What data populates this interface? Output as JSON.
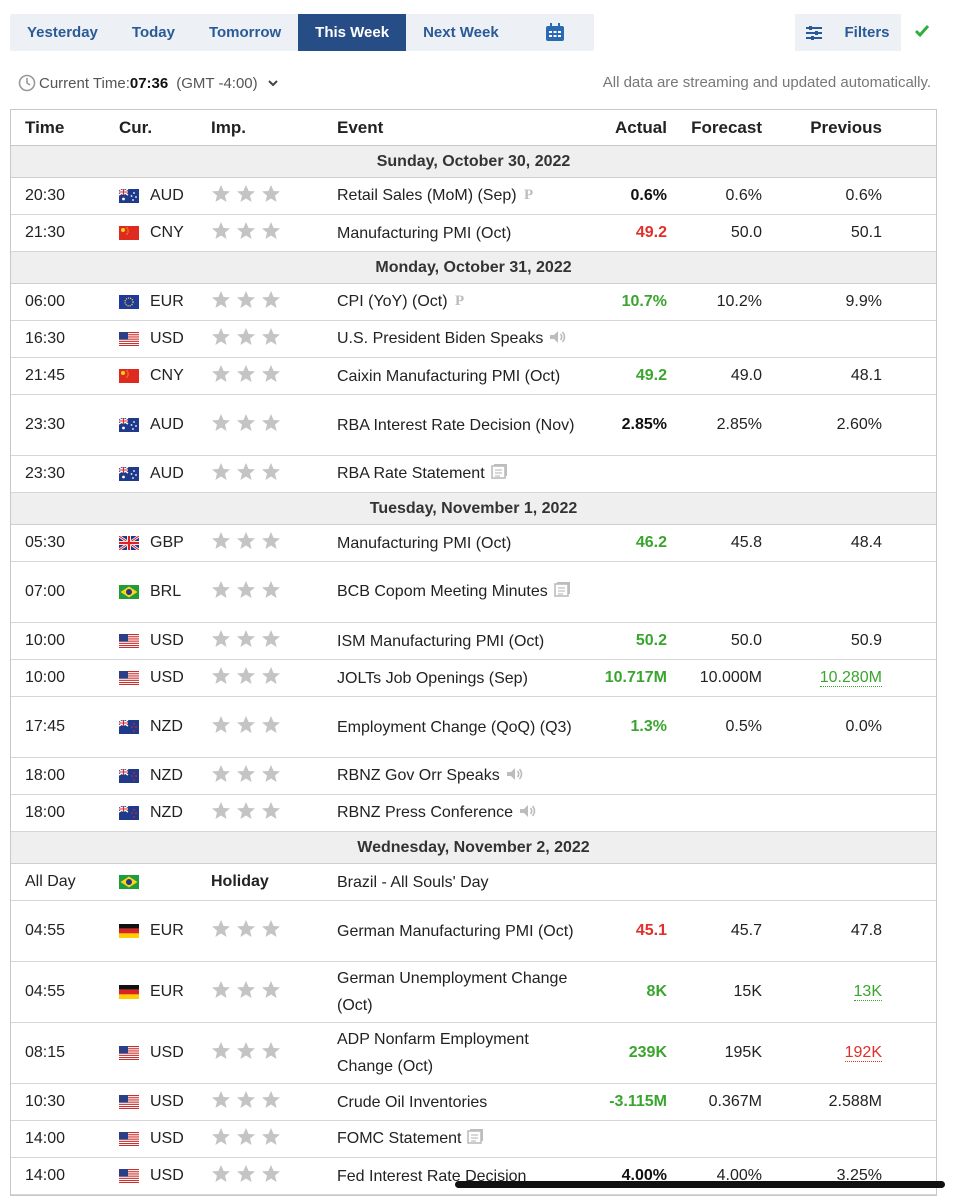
{
  "tabs": [
    {
      "label": "Yesterday",
      "active": false
    },
    {
      "label": "Today",
      "active": false
    },
    {
      "label": "Tomorrow",
      "active": false
    },
    {
      "label": "This Week",
      "active": true
    },
    {
      "label": "Next Week",
      "active": false
    }
  ],
  "filters_label": "Filters",
  "time": {
    "prefix": "Current Time:",
    "value": "07:36",
    "zone": "(GMT -4:00)"
  },
  "stream_note": "All data are streaming and updated automatically.",
  "headers": {
    "time": "Time",
    "cur": "Cur.",
    "imp": "Imp.",
    "event": "Event",
    "actual": "Actual",
    "forecast": "Forecast",
    "previous": "Previous"
  },
  "colors": {
    "accent": "#274d86",
    "tab_text": "#2a5a95",
    "positive": "#3aa52e",
    "negative": "#e0302b",
    "check": "#2fae3a"
  },
  "days": [
    {
      "label": "Sunday, October 30, 2022",
      "rows": [
        {
          "time": "20:30",
          "cur": "AUD",
          "flag": "au",
          "event": "Retail Sales (MoM) (Sep)",
          "icon": "preliminary-icon",
          "actual": "0.6%",
          "actual_color": "black",
          "forecast": "0.6%",
          "previous": "0.6%",
          "prev_style": ""
        },
        {
          "time": "21:30",
          "cur": "CNY",
          "flag": "cn",
          "event": "Manufacturing PMI (Oct)",
          "icon": "",
          "actual": "49.2",
          "actual_color": "red",
          "forecast": "50.0",
          "previous": "50.1",
          "prev_style": ""
        }
      ]
    },
    {
      "label": "Monday, October 31, 2022",
      "rows": [
        {
          "time": "06:00",
          "cur": "EUR",
          "flag": "eu",
          "event": "CPI (YoY) (Oct)",
          "icon": "preliminary-icon",
          "actual": "10.7%",
          "actual_color": "green",
          "forecast": "10.2%",
          "previous": "9.9%",
          "prev_style": ""
        },
        {
          "time": "16:30",
          "cur": "USD",
          "flag": "us",
          "event": "U.S. President Biden Speaks",
          "icon": "speaker-icon",
          "actual": "",
          "actual_color": "",
          "forecast": "",
          "previous": "",
          "prev_style": ""
        },
        {
          "time": "21:45",
          "cur": "CNY",
          "flag": "cn",
          "event": "Caixin Manufacturing PMI (Oct)",
          "icon": "",
          "actual": "49.2",
          "actual_color": "green",
          "forecast": "49.0",
          "previous": "48.1",
          "prev_style": ""
        },
        {
          "time": "23:30",
          "cur": "AUD",
          "flag": "au",
          "event": "RBA Interest Rate Decision (Nov)",
          "icon": "",
          "actual": "2.85%",
          "actual_color": "black",
          "forecast": "2.85%",
          "previous": "2.60%",
          "prev_style": "",
          "tall": true
        },
        {
          "time": "23:30",
          "cur": "AUD",
          "flag": "au",
          "event": "RBA Rate Statement",
          "icon": "document-icon",
          "actual": "",
          "actual_color": "",
          "forecast": "",
          "previous": "",
          "prev_style": ""
        }
      ]
    },
    {
      "label": "Tuesday, November 1, 2022",
      "rows": [
        {
          "time": "05:30",
          "cur": "GBP",
          "flag": "gb",
          "event": "Manufacturing PMI (Oct)",
          "icon": "",
          "actual": "46.2",
          "actual_color": "green",
          "forecast": "45.8",
          "previous": "48.4",
          "prev_style": ""
        },
        {
          "time": "07:00",
          "cur": "BRL",
          "flag": "br",
          "event": "BCB Copom Meeting Minutes",
          "icon": "document-icon",
          "actual": "",
          "actual_color": "",
          "forecast": "",
          "previous": "",
          "prev_style": "",
          "tall": true
        },
        {
          "time": "10:00",
          "cur": "USD",
          "flag": "us",
          "event": "ISM Manufacturing PMI (Oct)",
          "icon": "",
          "actual": "50.2",
          "actual_color": "green",
          "forecast": "50.0",
          "previous": "50.9",
          "prev_style": ""
        },
        {
          "time": "10:00",
          "cur": "USD",
          "flag": "us",
          "event": "JOLTs Job Openings (Sep)",
          "icon": "",
          "actual": "10.717M",
          "actual_color": "green",
          "forecast": "10.000M",
          "previous": "10.280M",
          "prev_style": "ul-green"
        },
        {
          "time": "17:45",
          "cur": "NZD",
          "flag": "nz",
          "event": "Employment Change (QoQ) (Q3)",
          "icon": "",
          "actual": "1.3%",
          "actual_color": "green",
          "forecast": "0.5%",
          "previous": "0.0%",
          "prev_style": "",
          "tall": true
        },
        {
          "time": "18:00",
          "cur": "NZD",
          "flag": "nz",
          "event": "RBNZ Gov Orr Speaks",
          "icon": "speaker-icon",
          "actual": "",
          "actual_color": "",
          "forecast": "",
          "previous": "",
          "prev_style": ""
        },
        {
          "time": "18:00",
          "cur": "NZD",
          "flag": "nz",
          "event": "RBNZ Press Conference",
          "icon": "speaker-icon",
          "actual": "",
          "actual_color": "",
          "forecast": "",
          "previous": "",
          "prev_style": ""
        }
      ]
    },
    {
      "label": "Wednesday, November 2, 2022",
      "rows": [
        {
          "time": "All Day",
          "cur": "",
          "flag": "br",
          "holiday": "Holiday",
          "event": "Brazil - All Souls' Day",
          "icon": "",
          "actual": "",
          "actual_color": "",
          "forecast": "",
          "previous": "",
          "prev_style": ""
        },
        {
          "time": "04:55",
          "cur": "EUR",
          "flag": "de",
          "event": "German Manufacturing PMI (Oct)",
          "icon": "",
          "actual": "45.1",
          "actual_color": "red",
          "forecast": "45.7",
          "previous": "47.8",
          "prev_style": "",
          "tall": true
        },
        {
          "time": "04:55",
          "cur": "EUR",
          "flag": "de",
          "event": "German Unemployment Change (Oct)",
          "icon": "",
          "actual": "8K",
          "actual_color": "green",
          "forecast": "15K",
          "previous": "13K",
          "prev_style": "ul-green",
          "tall": true
        },
        {
          "time": "08:15",
          "cur": "USD",
          "flag": "us",
          "event": "ADP Nonfarm Employment Change (Oct)",
          "icon": "",
          "actual": "239K",
          "actual_color": "green",
          "forecast": "195K",
          "previous": "192K",
          "prev_style": "ul-red",
          "tall": true
        },
        {
          "time": "10:30",
          "cur": "USD",
          "flag": "us",
          "event": "Crude Oil Inventories",
          "icon": "",
          "actual": "-3.115M",
          "actual_color": "green",
          "forecast": "0.367M",
          "previous": "2.588M",
          "prev_style": ""
        },
        {
          "time": "14:00",
          "cur": "USD",
          "flag": "us",
          "event": "FOMC Statement",
          "icon": "document-icon",
          "actual": "",
          "actual_color": "",
          "forecast": "",
          "previous": "",
          "prev_style": ""
        },
        {
          "time": "14:00",
          "cur": "USD",
          "flag": "us",
          "event": "Fed Interest Rate Decision",
          "icon": "",
          "actual": "4.00%",
          "actual_color": "black",
          "forecast": "4.00%",
          "previous": "3.25%",
          "prev_style": ""
        }
      ]
    }
  ]
}
